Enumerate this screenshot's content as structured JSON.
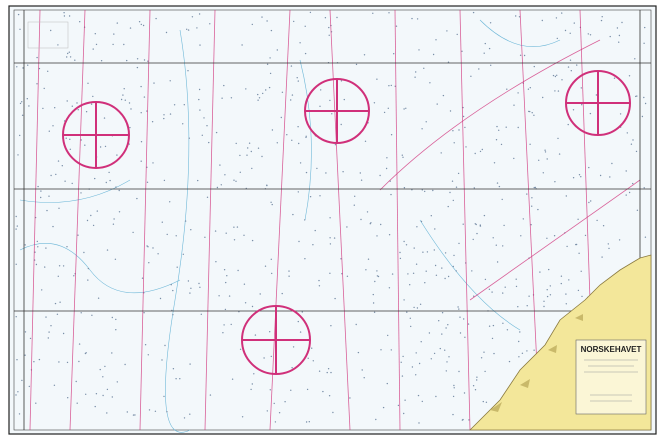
{
  "chart": {
    "title": "NORSKEHAVET"
  }
}
